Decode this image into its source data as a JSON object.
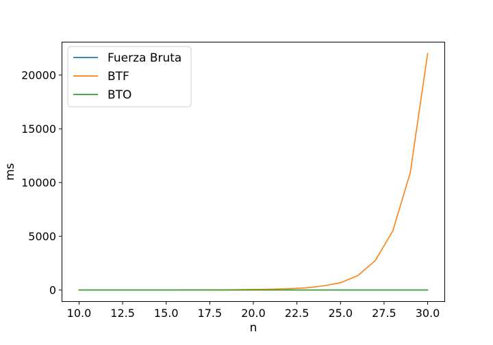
{
  "chart_data": {
    "type": "line",
    "xlabel": "n",
    "ylabel": "ms",
    "xlim": [
      9.0,
      31.0
    ],
    "ylim": [
      -1100,
      23100
    ],
    "xticks": [
      10.0,
      12.5,
      15.0,
      17.5,
      20.0,
      22.5,
      25.0,
      27.5,
      30.0
    ],
    "xtick_labels": [
      "10.0",
      "12.5",
      "15.0",
      "17.5",
      "20.0",
      "22.5",
      "25.0",
      "27.5",
      "30.0"
    ],
    "yticks": [
      0,
      5000,
      10000,
      15000,
      20000
    ],
    "ytick_labels": [
      "0",
      "5000",
      "10000",
      "15000",
      "20000"
    ],
    "grid": false,
    "legend_position": "top-left",
    "x": [
      10,
      11,
      12,
      13,
      14,
      15,
      16,
      17,
      18,
      19,
      20,
      21,
      22,
      23,
      24,
      25,
      26,
      27,
      28,
      29,
      30
    ],
    "series": [
      {
        "name": "Fuerza Bruta",
        "color": "#1f77b4",
        "values": [
          0,
          0,
          0,
          0,
          0,
          0,
          0,
          0,
          0,
          0,
          0,
          0,
          0,
          0,
          0,
          0,
          0,
          0,
          0,
          0,
          0
        ]
      },
      {
        "name": "BTF",
        "color": "#ff7f0e",
        "values": [
          0,
          1,
          1,
          2,
          3,
          5,
          8,
          12,
          20,
          35,
          55,
          85,
          120,
          200,
          380,
          680,
          1350,
          2750,
          5500,
          10900,
          22000
        ]
      },
      {
        "name": "BTO",
        "color": "#2ca02c",
        "values": [
          0,
          0,
          0,
          0,
          0,
          0,
          0,
          0,
          0,
          0,
          0,
          0,
          0,
          0,
          0,
          0,
          0,
          0,
          0,
          0,
          0
        ]
      }
    ]
  }
}
